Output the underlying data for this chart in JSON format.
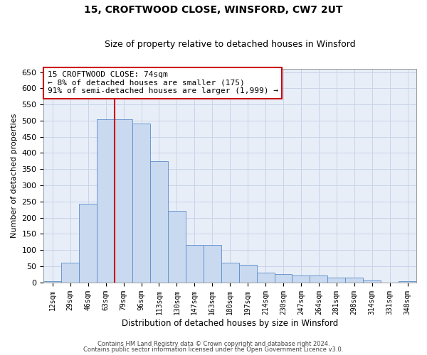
{
  "title": "15, CROFTWOOD CLOSE, WINSFORD, CW7 2UT",
  "subtitle": "Size of property relative to detached houses in Winsford",
  "xlabel": "Distribution of detached houses by size in Winsford",
  "ylabel": "Number of detached properties",
  "bar_labels": [
    "12sqm",
    "29sqm",
    "46sqm",
    "63sqm",
    "79sqm",
    "96sqm",
    "113sqm",
    "130sqm",
    "147sqm",
    "163sqm",
    "180sqm",
    "197sqm",
    "214sqm",
    "230sqm",
    "247sqm",
    "264sqm",
    "281sqm",
    "298sqm",
    "314sqm",
    "331sqm",
    "348sqm"
  ],
  "bar_heights": [
    3,
    60,
    242,
    505,
    505,
    490,
    375,
    220,
    115,
    115,
    60,
    55,
    30,
    25,
    20,
    20,
    15,
    15,
    5,
    0,
    3
  ],
  "bar_color": "#c8d9f0",
  "bar_edge_color": "#5b8cc8",
  "vline_x": 3.5,
  "vline_color": "#cc0000",
  "ylim": [
    0,
    660
  ],
  "yticks": [
    0,
    50,
    100,
    150,
    200,
    250,
    300,
    350,
    400,
    450,
    500,
    550,
    600,
    650
  ],
  "annotation_text": "15 CROFTWOOD CLOSE: 74sqm\n← 8% of detached houses are smaller (175)\n91% of semi-detached houses are larger (1,999) →",
  "annotation_box_color": "#ffffff",
  "annotation_box_edge": "#cc0000",
  "footer1": "Contains HM Land Registry data © Crown copyright and database right 2024.",
  "footer2": "Contains public sector information licensed under the Open Government Licence v3.0.",
  "grid_color": "#c8d4e8",
  "background_color": "#e8eef8"
}
